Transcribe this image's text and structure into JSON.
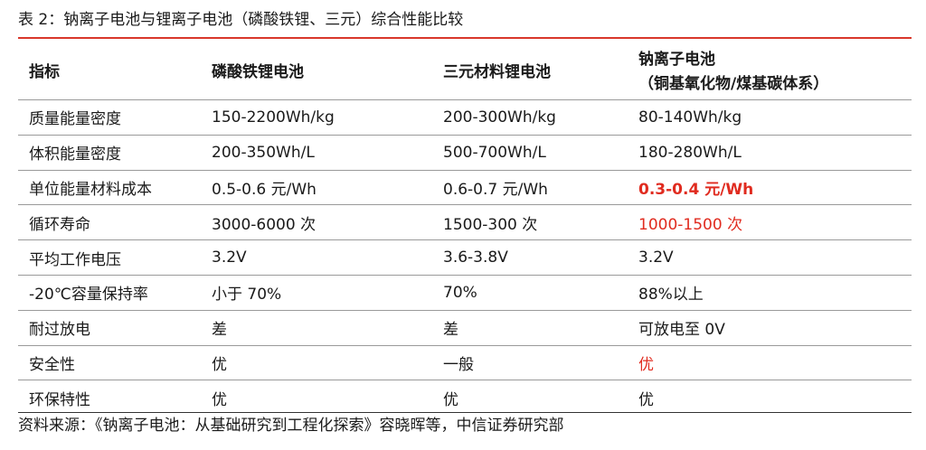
{
  "title": "表 2：钠离子电池与锂离子电池（磷酸铁锂、三元）综合性能比较",
  "headers": {
    "col0": "指标",
    "col1": "磷酸铁锂电池",
    "col2": "三元材料锂电池",
    "col3_line1": "钠离子电池",
    "col3_line2": "（铜基氧化物/煤基碳体系）"
  },
  "rows": [
    {
      "metric": "质量能量密度",
      "lfp": "150-2200Wh/kg",
      "ncm": "200-300Wh/kg",
      "na": "80-140Wh/kg"
    },
    {
      "metric": "体积能量密度",
      "lfp": "200-350Wh/L",
      "ncm": "500-700Wh/L",
      "na": "180-280Wh/L"
    },
    {
      "metric": "单位能量材料成本",
      "lfp": "0.5-0.6 元/Wh",
      "ncm": "0.6-0.7 元/Wh",
      "na": "0.3-0.4 元/Wh"
    },
    {
      "metric": "循环寿命",
      "lfp": "3000-6000 次",
      "ncm": "1500-300 次",
      "na": "1000-1500 次"
    },
    {
      "metric": "平均工作电压",
      "lfp": "3.2V",
      "ncm": "3.6-3.8V",
      "na": "3.2V"
    },
    {
      "metric": "-20℃容量保持率",
      "lfp": "小于 70%",
      "ncm": "70%",
      "na": "88%以上"
    },
    {
      "metric": "耐过放电",
      "lfp": "差",
      "ncm": "差",
      "na": "可放电至 0V"
    },
    {
      "metric": "安全性",
      "lfp": "优",
      "ncm": "一般",
      "na": "优"
    },
    {
      "metric": "环保特性",
      "lfp": "优",
      "ncm": "优",
      "na": "优"
    }
  ],
  "source": "资料来源：《钠离子电池：从基础研究到工程化探索》容晓晖等，中信证券研究部",
  "colors": {
    "accent_red": "#e02b1f",
    "rule_red": "#d9372b",
    "rule_grey": "#9a9a9a"
  }
}
